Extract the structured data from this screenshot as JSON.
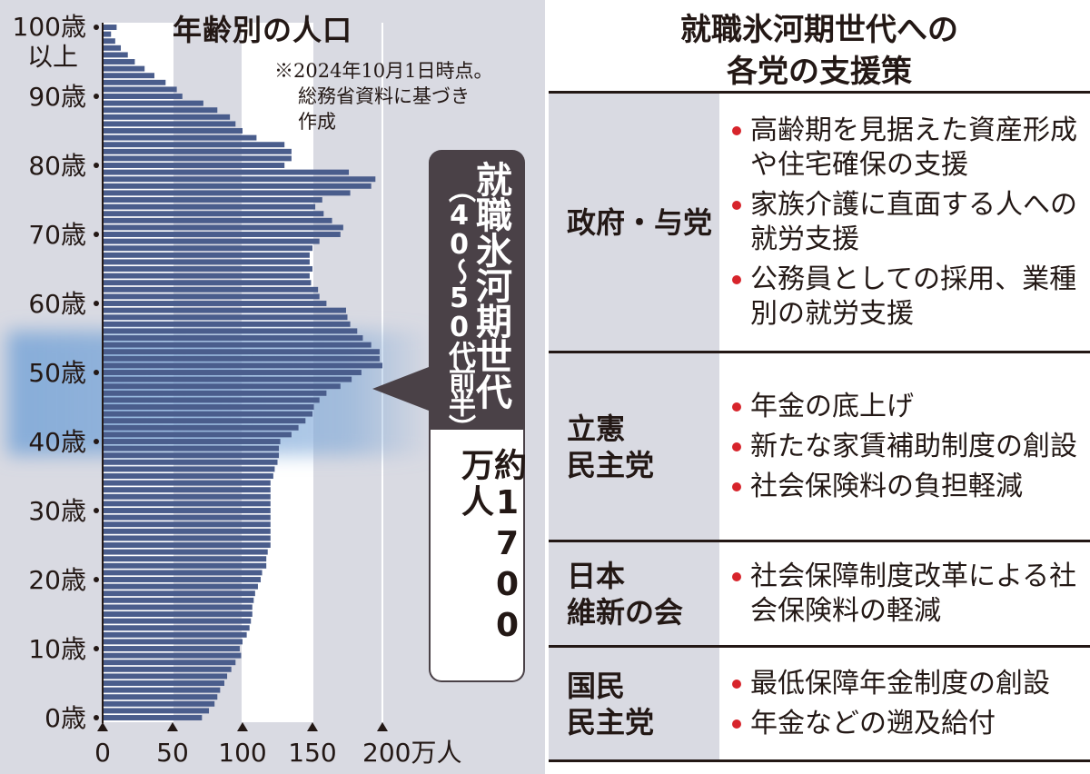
{
  "chart_data": {
    "type": "bar",
    "orientation": "horizontal",
    "title": "年齢別の人口",
    "note": [
      "※2024年10月1日時点。",
      "総務省資料に基づき",
      "作成"
    ],
    "x_unit": "万人",
    "xlim": [
      0,
      200
    ],
    "x_ticks": [
      "0",
      "50",
      "100",
      "150",
      "200万人"
    ],
    "y_ticks": [
      "100歳\n以上",
      "90歳",
      "80歳",
      "70歳",
      "60歳",
      "50歳",
      "40歳",
      "30歳",
      "20歳",
      "10歳",
      "0歳"
    ],
    "ages": [
      0,
      1,
      2,
      3,
      4,
      5,
      6,
      7,
      8,
      9,
      10,
      11,
      12,
      13,
      14,
      15,
      16,
      17,
      18,
      19,
      20,
      21,
      22,
      23,
      24,
      25,
      26,
      27,
      28,
      29,
      30,
      31,
      32,
      33,
      34,
      35,
      36,
      37,
      38,
      39,
      40,
      41,
      42,
      43,
      44,
      45,
      46,
      47,
      48,
      49,
      50,
      51,
      52,
      53,
      54,
      55,
      56,
      57,
      58,
      59,
      60,
      61,
      62,
      63,
      64,
      65,
      66,
      67,
      68,
      69,
      70,
      71,
      72,
      73,
      74,
      75,
      76,
      77,
      78,
      79,
      80,
      81,
      82,
      83,
      84,
      85,
      86,
      87,
      88,
      89,
      90,
      91,
      92,
      93,
      94,
      95,
      96,
      97,
      98,
      99,
      100
    ],
    "values": [
      71,
      76,
      80,
      82,
      84,
      87,
      89,
      92,
      95,
      99,
      98,
      100,
      103,
      105,
      106,
      107,
      107,
      108,
      109,
      111,
      113,
      114,
      117,
      117,
      118,
      120,
      120,
      120,
      120,
      120,
      120,
      120,
      120,
      120,
      120,
      122,
      123,
      125,
      126,
      126,
      127,
      135,
      140,
      145,
      150,
      151,
      155,
      160,
      170,
      178,
      185,
      200,
      198,
      198,
      192,
      186,
      182,
      177,
      175,
      174,
      160,
      155,
      154,
      149,
      148,
      150,
      148,
      148,
      150,
      155,
      170,
      172,
      164,
      158,
      152,
      157,
      177,
      192,
      195,
      176,
      130,
      135,
      135,
      130,
      110,
      100,
      95,
      91,
      82,
      72,
      57,
      53,
      45,
      37,
      30,
      23,
      18,
      13,
      9,
      6,
      10
    ],
    "highlight": {
      "label": "就職氷河期世代",
      "age_range": [
        "40",
        "50代前半"
      ],
      "count": "約1700万人"
    }
  },
  "callout": {
    "title": "就職氷河期世代",
    "range": "（40〜50代前半）",
    "count": "約1700万人"
  },
  "panel": {
    "title_line1": "就職氷河期世代への",
    "title_line2": "各党の支援策",
    "rows": [
      {
        "party": [
          "政府・与党"
        ],
        "policies": [
          "高齢期を見据えた資産形成や住宅確保の支援",
          "家族介護に直面する人への就労支援",
          "公務員としての採用、業種別の就労支援"
        ]
      },
      {
        "party": [
          "立憲",
          "民主党"
        ],
        "policies": [
          "年金の底上げ",
          "新たな家賃補助制度の創設",
          "社会保険料の負担軽減"
        ]
      },
      {
        "party": [
          "日本",
          "維新の会"
        ],
        "policies": [
          "社会保障制度改革による社会保険料の軽減"
        ]
      },
      {
        "party": [
          "国民",
          "民主党"
        ],
        "policies": [
          "最低保障年金制度の創設",
          "年金などの遡及給付"
        ]
      }
    ]
  },
  "colors": {
    "bar": "#4a5d8c",
    "bar_stroke": "#ffffff",
    "highlight": "#7ea8d8",
    "bullet": "#d7242b",
    "panel_bg": "#d9dae2",
    "callout_bg": "#4a4147"
  }
}
